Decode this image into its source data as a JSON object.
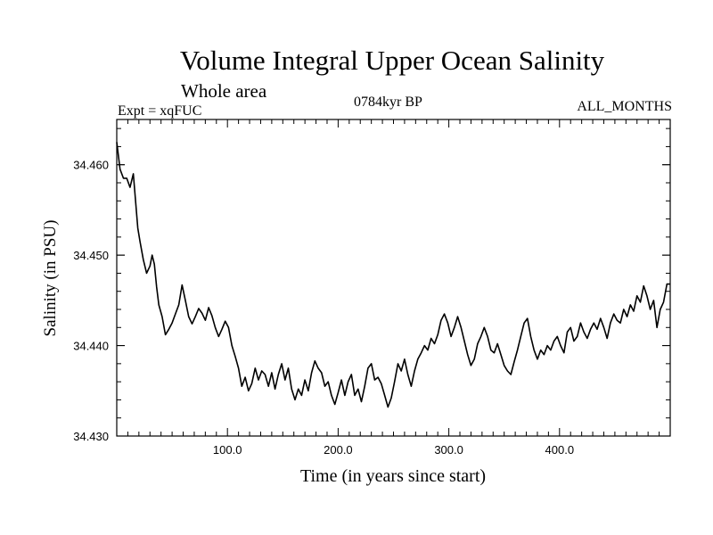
{
  "chart_data": {
    "type": "line",
    "title": "Volume Integral Upper Ocean Salinity",
    "subtitle": "Whole area",
    "annotations": {
      "left": "Expt = xqFUC",
      "center": "0784kyr BP",
      "right": "ALL_MONTHS"
    },
    "xlabel": "Time (in years since start)",
    "ylabel": "Salinity (in PSU)",
    "xlim": [
      0,
      500
    ],
    "ylim": [
      34.43,
      34.465
    ],
    "xticks": [
      100,
      200,
      300,
      400
    ],
    "xtick_labels": [
      "100.0",
      "200.0",
      "300.0",
      "400.0"
    ],
    "yticks": [
      34.43,
      34.44,
      34.45,
      34.46
    ],
    "ytick_labels": [
      "34.430",
      "34.440",
      "34.450",
      "34.460"
    ],
    "series": [
      {
        "name": "salinity",
        "points": [
          [
            0,
            34.4625
          ],
          [
            3,
            34.4595
          ],
          [
            6,
            34.4585
          ],
          [
            9,
            34.4585
          ],
          [
            12,
            34.4575
          ],
          [
            15,
            34.459
          ],
          [
            17,
            34.456
          ],
          [
            19,
            34.453
          ],
          [
            21,
            34.4515
          ],
          [
            24,
            34.4495
          ],
          [
            27,
            34.448
          ],
          [
            30,
            34.4488
          ],
          [
            32,
            34.45
          ],
          [
            34,
            34.449
          ],
          [
            36,
            34.4465
          ],
          [
            38,
            34.4445
          ],
          [
            41,
            34.4432
          ],
          [
            44,
            34.4412
          ],
          [
            47,
            34.4418
          ],
          [
            50,
            34.4425
          ],
          [
            53,
            34.4435
          ],
          [
            56,
            34.4445
          ],
          [
            59,
            34.4467
          ],
          [
            62,
            34.445
          ],
          [
            65,
            34.4432
          ],
          [
            68,
            34.4424
          ],
          [
            71,
            34.4432
          ],
          [
            74,
            34.4441
          ],
          [
            77,
            34.4436
          ],
          [
            80,
            34.4428
          ],
          [
            83,
            34.4442
          ],
          [
            86,
            34.4433
          ],
          [
            89,
            34.442
          ],
          [
            92,
            34.441
          ],
          [
            95,
            34.4418
          ],
          [
            98,
            34.4427
          ],
          [
            101,
            34.442
          ],
          [
            104,
            34.44
          ],
          [
            107,
            34.4388
          ],
          [
            110,
            34.4375
          ],
          [
            113,
            34.4355
          ],
          [
            116,
            34.4365
          ],
          [
            119,
            34.435
          ],
          [
            122,
            34.4358
          ],
          [
            125,
            34.4375
          ],
          [
            128,
            34.4362
          ],
          [
            131,
            34.4372
          ],
          [
            134,
            34.4368
          ],
          [
            137,
            34.4355
          ],
          [
            140,
            34.437
          ],
          [
            143,
            34.4352
          ],
          [
            146,
            34.4368
          ],
          [
            149,
            34.438
          ],
          [
            152,
            34.4362
          ],
          [
            155,
            34.4375
          ],
          [
            158,
            34.4352
          ],
          [
            161,
            34.434
          ],
          [
            164,
            34.4352
          ],
          [
            167,
            34.4345
          ],
          [
            170,
            34.4362
          ],
          [
            173,
            34.435
          ],
          [
            176,
            34.437
          ],
          [
            179,
            34.4383
          ],
          [
            182,
            34.4375
          ],
          [
            185,
            34.437
          ],
          [
            188,
            34.4355
          ],
          [
            191,
            34.436
          ],
          [
            194,
            34.4345
          ],
          [
            197,
            34.4335
          ],
          [
            200,
            34.4348
          ],
          [
            203,
            34.4362
          ],
          [
            206,
            34.4345
          ],
          [
            209,
            34.436
          ],
          [
            212,
            34.4368
          ],
          [
            215,
            34.4345
          ],
          [
            218,
            34.4352
          ],
          [
            221,
            34.4338
          ],
          [
            224,
            34.4355
          ],
          [
            227,
            34.4375
          ],
          [
            230,
            34.438
          ],
          [
            233,
            34.4362
          ],
          [
            236,
            34.4365
          ],
          [
            239,
            34.4358
          ],
          [
            242,
            34.4345
          ],
          [
            245,
            34.4332
          ],
          [
            248,
            34.4342
          ],
          [
            251,
            34.436
          ],
          [
            254,
            34.438
          ],
          [
            257,
            34.4372
          ],
          [
            260,
            34.4385
          ],
          [
            263,
            34.4368
          ],
          [
            266,
            34.4355
          ],
          [
            269,
            34.4372
          ],
          [
            272,
            34.4385
          ],
          [
            275,
            34.4392
          ],
          [
            278,
            34.44
          ],
          [
            281,
            34.4395
          ],
          [
            284,
            34.4408
          ],
          [
            287,
            34.4402
          ],
          [
            290,
            34.4412
          ],
          [
            293,
            34.4428
          ],
          [
            296,
            34.4435
          ],
          [
            299,
            34.4425
          ],
          [
            302,
            34.441
          ],
          [
            305,
            34.442
          ],
          [
            308,
            34.4432
          ],
          [
            311,
            34.442
          ],
          [
            314,
            34.4405
          ],
          [
            317,
            34.439
          ],
          [
            320,
            34.4378
          ],
          [
            323,
            34.4385
          ],
          [
            326,
            34.4402
          ],
          [
            329,
            34.441
          ],
          [
            332,
            34.442
          ],
          [
            335,
            34.441
          ],
          [
            338,
            34.4395
          ],
          [
            341,
            34.4392
          ],
          [
            344,
            34.4402
          ],
          [
            347,
            34.439
          ],
          [
            350,
            34.4378
          ],
          [
            353,
            34.4372
          ],
          [
            356,
            34.4368
          ],
          [
            359,
            34.4382
          ],
          [
            362,
            34.4395
          ],
          [
            365,
            34.441
          ],
          [
            368,
            34.4425
          ],
          [
            371,
            34.443
          ],
          [
            374,
            34.441
          ],
          [
            377,
            34.4395
          ],
          [
            380,
            34.4385
          ],
          [
            383,
            34.4395
          ],
          [
            386,
            34.439
          ],
          [
            389,
            34.44
          ],
          [
            392,
            34.4395
          ],
          [
            395,
            34.4405
          ],
          [
            398,
            34.441
          ],
          [
            401,
            34.44
          ],
          [
            404,
            34.4392
          ],
          [
            407,
            34.4415
          ],
          [
            410,
            34.442
          ],
          [
            413,
            34.4405
          ],
          [
            416,
            34.441
          ],
          [
            419,
            34.4425
          ],
          [
            422,
            34.4415
          ],
          [
            425,
            34.4408
          ],
          [
            428,
            34.4418
          ],
          [
            431,
            34.4425
          ],
          [
            434,
            34.4418
          ],
          [
            437,
            34.443
          ],
          [
            440,
            34.442
          ],
          [
            443,
            34.4408
          ],
          [
            446,
            34.4425
          ],
          [
            449,
            34.4435
          ],
          [
            452,
            34.4428
          ],
          [
            455,
            34.4425
          ],
          [
            458,
            34.444
          ],
          [
            461,
            34.4432
          ],
          [
            464,
            34.4445
          ],
          [
            467,
            34.4438
          ],
          [
            470,
            34.4455
          ],
          [
            473,
            34.4448
          ],
          [
            476,
            34.4466
          ],
          [
            479,
            34.4455
          ],
          [
            482,
            34.444
          ],
          [
            485,
            34.445
          ],
          [
            488,
            34.442
          ],
          [
            491,
            34.444
          ],
          [
            494,
            34.4448
          ],
          [
            497,
            34.4468
          ],
          [
            500,
            34.4468
          ]
        ]
      }
    ]
  },
  "style": {
    "line_color": "#000000",
    "axis_color": "#000000",
    "background": "#ffffff"
  }
}
